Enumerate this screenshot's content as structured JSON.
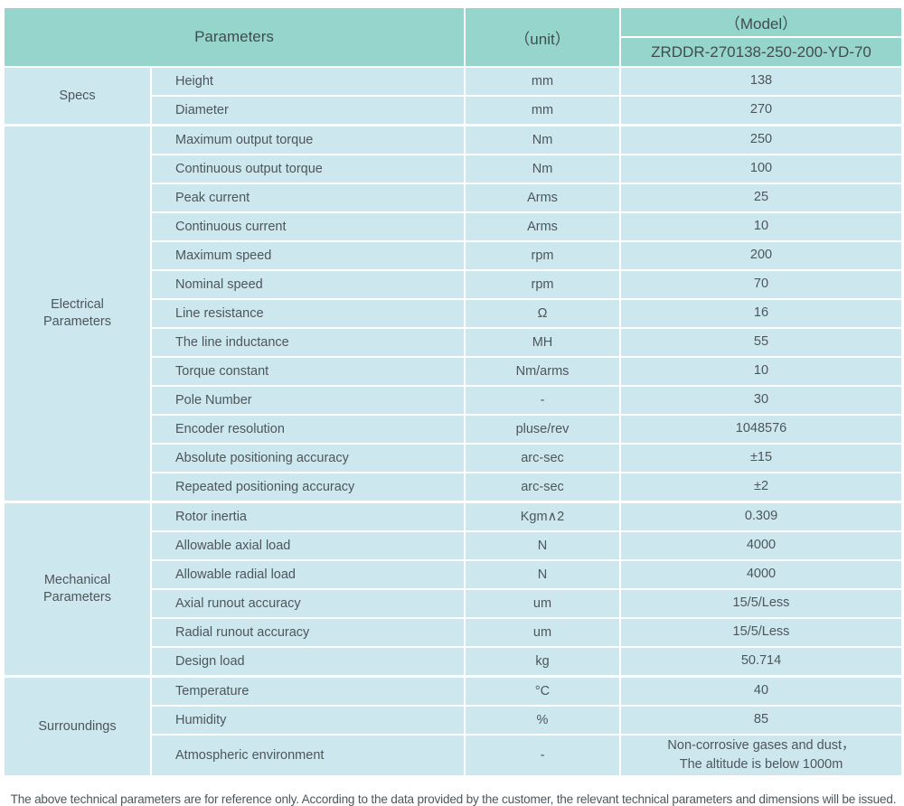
{
  "table": {
    "header": {
      "parameters": "Parameters",
      "unit": "（unit）",
      "model": "（Model）",
      "model_value": "ZRDDR-270138-250-200-YD-70"
    },
    "groups": [
      {
        "label": "Specs",
        "rowspan": 2
      },
      {
        "label": "Electrical\nParameters",
        "rowspan": 13
      },
      {
        "label": "Mechanical\nParameters",
        "rowspan": 6
      },
      {
        "label": "Surroundings",
        "rowspan": 3
      }
    ],
    "rows": [
      {
        "param": "Height",
        "unit": "mm",
        "value": "138"
      },
      {
        "param": "Diameter",
        "unit": "mm",
        "value": "270"
      },
      {
        "param": "Maximum output torque",
        "unit": "Nm",
        "value": "250"
      },
      {
        "param": "Continuous output torque",
        "unit": "Nm",
        "value": "100"
      },
      {
        "param": "Peak current",
        "unit": "Arms",
        "value": "25"
      },
      {
        "param": "Continuous current",
        "unit": "Arms",
        "value": "10"
      },
      {
        "param": "Maximum speed",
        "unit": "rpm",
        "value": "200"
      },
      {
        "param": "Nominal speed",
        "unit": "rpm",
        "value": "70"
      },
      {
        "param": "Line resistance",
        "unit": "Ω",
        "value": "16"
      },
      {
        "param": "The line inductance",
        "unit": "MH",
        "value": "55"
      },
      {
        "param": "Torque constant",
        "unit": "Nm/arms",
        "value": "10"
      },
      {
        "param": "Pole Number",
        "unit": "-",
        "value": "30"
      },
      {
        "param": "Encoder resolution",
        "unit": "pluse/rev",
        "value": "1048576"
      },
      {
        "param": "Absolute positioning accuracy",
        "unit": "arc-sec",
        "value": "±15"
      },
      {
        "param": "Repeated positioning accuracy",
        "unit": "arc-sec",
        "value": "±2"
      },
      {
        "param": "Rotor inertia",
        "unit": "Kgm∧2",
        "value": "0.309"
      },
      {
        "param": "Allowable axial load",
        "unit": "N",
        "value": "4000"
      },
      {
        "param": "Allowable radial load",
        "unit": "N",
        "value": "4000"
      },
      {
        "param": "Axial runout accuracy",
        "unit": "um",
        "value": "15/5/Less"
      },
      {
        "param": "Radial runout accuracy",
        "unit": "um",
        "value": "15/5/Less"
      },
      {
        "param": "Design load",
        "unit": "kg",
        "value": "50.714"
      },
      {
        "param": "Temperature",
        "unit": "°C",
        "value": "40"
      },
      {
        "param": "Humidity",
        "unit": "%",
        "value": "85"
      },
      {
        "param": "Atmospheric environment",
        "unit": "-",
        "value": "Non-corrosive gases and dust，\nThe altitude is below 1000m"
      }
    ]
  },
  "footer_note": "The above technical parameters are for reference only. According to the data provided by the customer, the relevant technical parameters and dimensions will be issued.",
  "colors": {
    "header_bg": "#96d5cc",
    "row_bg": "#cde7ef",
    "divider": "#ffffff",
    "text": "#4d565a"
  }
}
